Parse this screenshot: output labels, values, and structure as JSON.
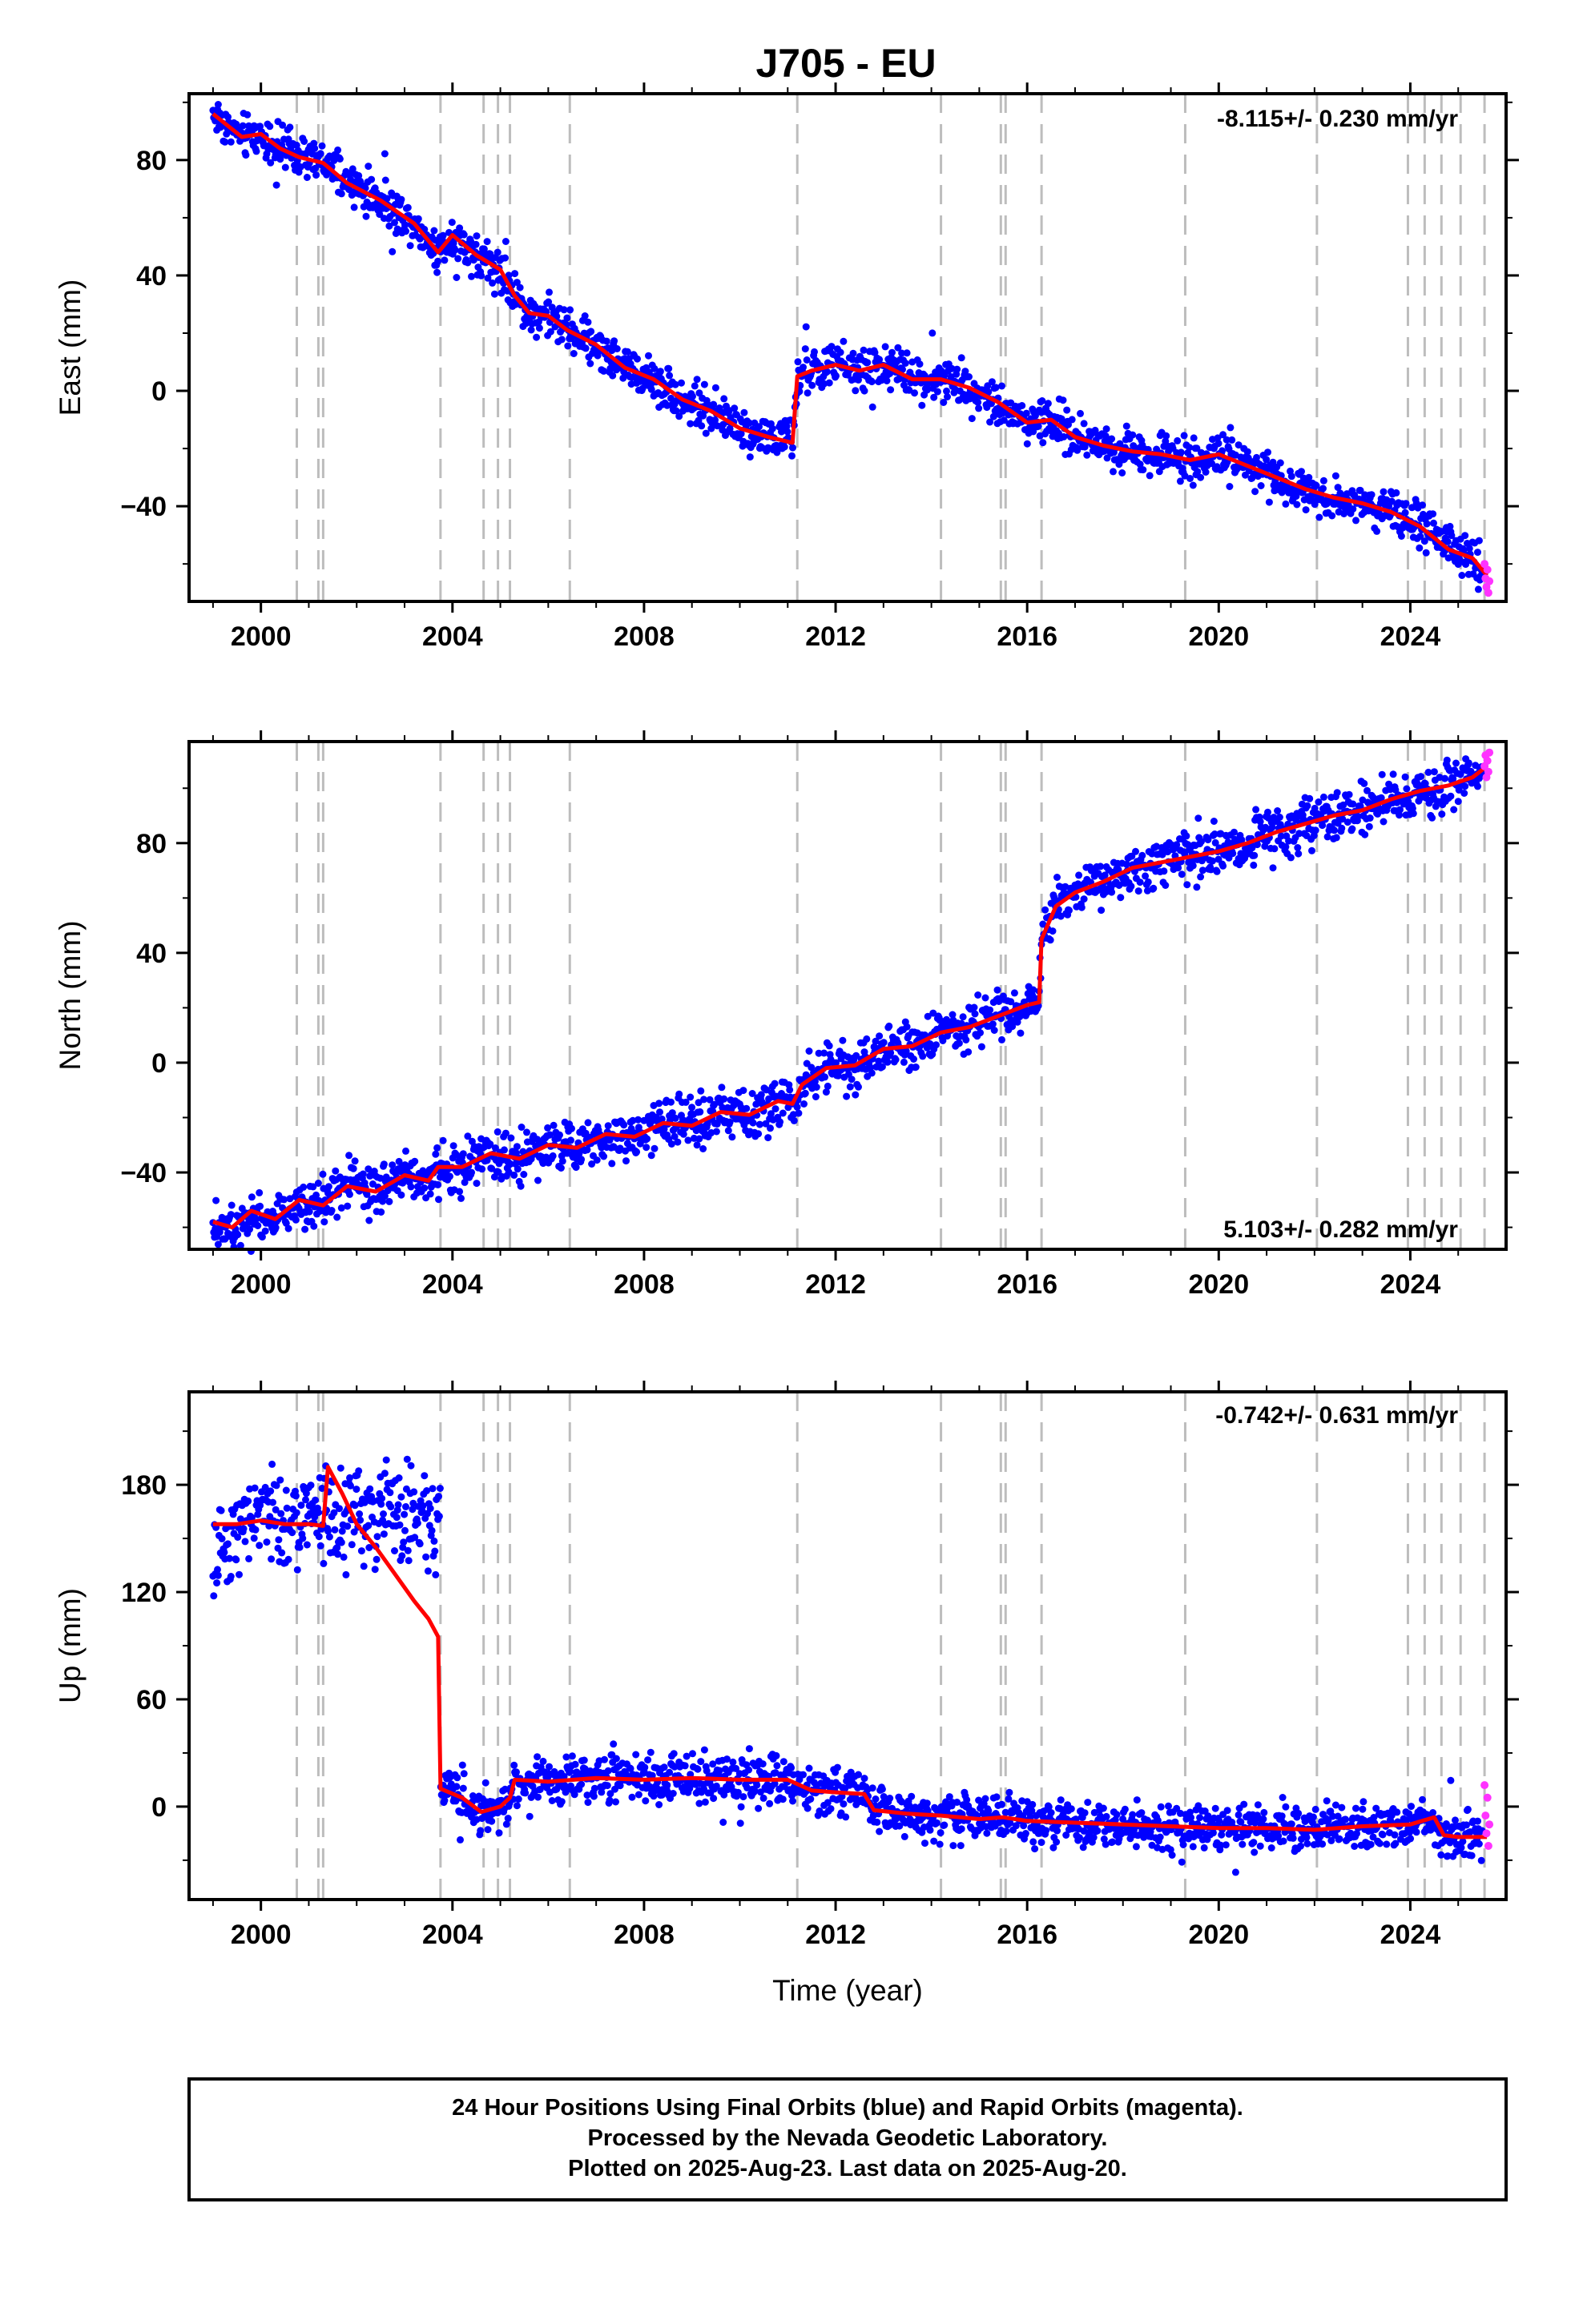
{
  "title": "J705 - EU",
  "colors": {
    "final_orbits": "#0000ff",
    "rapid_orbits": "#ff33ff",
    "model": "#ff0000",
    "event_lines": "#bdbdbd"
  },
  "xlabel": "Time (year)",
  "x_ticks": [
    "2000",
    "2004",
    "2008",
    "2012",
    "2016",
    "2020",
    "2024"
  ],
  "x_tick_values": [
    2000,
    2004,
    2008,
    2012,
    2016,
    2020,
    2024
  ],
  "xlim": [
    1998.5,
    2026.0
  ],
  "event_lines": [
    2000.75,
    2001.2,
    2001.3,
    2003.75,
    2004.65,
    2004.95,
    2005.2,
    2006.45,
    2011.2,
    2014.2,
    2015.45,
    2015.55,
    2016.3,
    2019.3,
    2022.05,
    2023.95,
    2024.3,
    2024.65,
    2025.05,
    2025.55
  ],
  "caption": {
    "line1": "24 Hour Positions Using Final Orbits (blue) and Rapid Orbits (magenta).",
    "line2": "Processed by the Nevada Geodetic Laboratory.",
    "line3": "Plotted on 2025-Aug-23. Last data on 2025-Aug-20."
  },
  "chart_data": [
    {
      "type": "scatter",
      "ylabel": "East (mm)",
      "rate_label": "-8.115+/- 0.230 mm/yr",
      "xlim": [
        1998.5,
        2026.0
      ],
      "ylim": [
        -73,
        103
      ],
      "y_ticks": [
        80,
        40,
        0,
        -40
      ],
      "y_tick_labels": [
        "80",
        "40",
        "0",
        "−40"
      ],
      "model": {
        "x": [
          1999.0,
          1999.3,
          1999.6,
          2000.0,
          2000.4,
          2000.8,
          2001.3,
          2001.8,
          2002.5,
          2003.2,
          2003.7,
          2004.0,
          2004.5,
          2005.0,
          2005.3,
          2005.6,
          2006.0,
          2006.4,
          2007.0,
          2007.6,
          2008.2,
          2008.8,
          2009.4,
          2010.0,
          2010.6,
          2011.1,
          2011.2,
          2011.5,
          2012.0,
          2012.5,
          2013.0,
          2013.6,
          2014.2,
          2014.8,
          2015.4,
          2016.0,
          2016.5,
          2017.0,
          2017.6,
          2018.2,
          2018.8,
          2019.4,
          2020.0,
          2020.6,
          2021.2,
          2021.8,
          2022.4,
          2023.0,
          2023.6,
          2024.2,
          2024.8,
          2025.3,
          2025.6
        ],
        "y": [
          96,
          92,
          88,
          89,
          84,
          81,
          79,
          72,
          66,
          58,
          48,
          54,
          47,
          42,
          33,
          27,
          26,
          21,
          16,
          8,
          4,
          -3,
          -7,
          -13,
          -16,
          -18,
          5,
          7,
          9,
          7,
          9,
          4,
          4,
          1,
          -4,
          -11,
          -10,
          -16,
          -19,
          -21,
          -22,
          -24,
          -22,
          -26,
          -30,
          -34,
          -37,
          -39,
          -42,
          -47,
          -55,
          -58,
          -64
        ]
      },
      "final_orbits_range": [
        1999.0,
        2025.5
      ],
      "rapid_orbits": {
        "x": [
          2025.55,
          2025.57,
          2025.59,
          2025.61,
          2025.63,
          2025.65
        ],
        "y": [
          -60,
          -65,
          -68,
          -62,
          -70,
          -66
        ]
      }
    },
    {
      "type": "scatter",
      "ylabel": "North (mm)",
      "rate_label": "5.103+/- 0.282 mm/yr",
      "xlim": [
        1998.5,
        2026.0
      ],
      "ylim": [
        -68,
        117
      ],
      "y_ticks": [
        80,
        40,
        0,
        -40
      ],
      "y_tick_labels": [
        "80",
        "40",
        "0",
        "−40"
      ],
      "model": {
        "x": [
          1999.0,
          1999.4,
          1999.8,
          2000.3,
          2000.8,
          2001.3,
          2001.8,
          2002.4,
          2003.0,
          2003.5,
          2003.7,
          2004.2,
          2004.8,
          2005.4,
          2006.0,
          2006.6,
          2007.2,
          2007.8,
          2008.4,
          2009.0,
          2009.6,
          2010.2,
          2010.8,
          2011.1,
          2011.3,
          2011.8,
          2012.4,
          2013.0,
          2013.6,
          2014.2,
          2014.8,
          2015.4,
          2016.0,
          2016.25,
          2016.3,
          2016.6,
          2017.0,
          2017.6,
          2018.2,
          2018.8,
          2019.4,
          2020.0,
          2020.6,
          2021.2,
          2021.8,
          2022.4,
          2023.0,
          2023.6,
          2024.2,
          2024.8,
          2025.3,
          2025.6
        ],
        "y": [
          -58,
          -60,
          -54,
          -57,
          -50,
          -52,
          -45,
          -47,
          -41,
          -43,
          -38,
          -38,
          -33,
          -35,
          -30,
          -31,
          -26,
          -27,
          -22,
          -23,
          -18,
          -19,
          -14,
          -15,
          -8,
          -2,
          -1,
          5,
          6,
          11,
          13,
          17,
          21,
          22,
          45,
          57,
          62,
          66,
          71,
          73,
          75,
          77,
          80,
          84,
          87,
          90,
          92,
          96,
          99,
          101,
          104,
          108
        ]
      },
      "final_orbits_range": [
        1999.0,
        2025.5
      ],
      "rapid_orbits": {
        "x": [
          2025.55,
          2025.57,
          2025.59,
          2025.61,
          2025.63,
          2025.65
        ],
        "y": [
          108,
          112,
          104,
          110,
          106,
          113
        ]
      }
    },
    {
      "type": "scatter",
      "ylabel": "Up (mm)",
      "rate_label": "-0.742+/- 0.631 mm/yr",
      "xlim": [
        1998.5,
        2026.0
      ],
      "ylim": [
        -52,
        232
      ],
      "y_ticks": [
        180,
        120,
        60,
        0
      ],
      "y_tick_labels": [
        "180",
        "120",
        "60",
        "0"
      ],
      "model": {
        "x": [
          1999.0,
          1999.5,
          2000.0,
          2000.5,
          2001.0,
          2001.3,
          2001.4,
          2001.7,
          2002.0,
          2002.4,
          2002.8,
          2003.2,
          2003.5,
          2003.7,
          2003.75,
          2004.2,
          2004.6,
          2005.0,
          2005.2,
          2005.3,
          2006.0,
          2007.0,
          2008.0,
          2009.0,
          2010.0,
          2011.0,
          2011.5,
          2012.0,
          2012.6,
          2012.8,
          2013.5,
          2014.2,
          2015.0,
          2015.5,
          2016.0,
          2017.0,
          2018.0,
          2019.0,
          2020.0,
          2021.0,
          2022.0,
          2023.0,
          2024.0,
          2024.5,
          2024.7,
          2025.0,
          2025.6
        ],
        "y": [
          158,
          158,
          160,
          158,
          158,
          157,
          190,
          175,
          158,
          145,
          130,
          115,
          105,
          95,
          10,
          5,
          -3,
          0,
          5,
          15,
          14,
          16,
          15,
          16,
          15,
          15,
          9,
          8,
          7,
          -2,
          -4,
          -5,
          -7,
          -6,
          -8,
          -9,
          -10,
          -11,
          -12,
          -12,
          -13,
          -11,
          -10,
          -6,
          -16,
          -17,
          -17
        ]
      },
      "final_orbits_range": [
        1999.0,
        2025.5
      ],
      "rapid_orbits": {
        "x": [
          2025.55,
          2025.57,
          2025.59,
          2025.61,
          2025.63,
          2025.65
        ],
        "y": [
          12,
          -5,
          -15,
          5,
          -22,
          -10
        ]
      }
    }
  ]
}
